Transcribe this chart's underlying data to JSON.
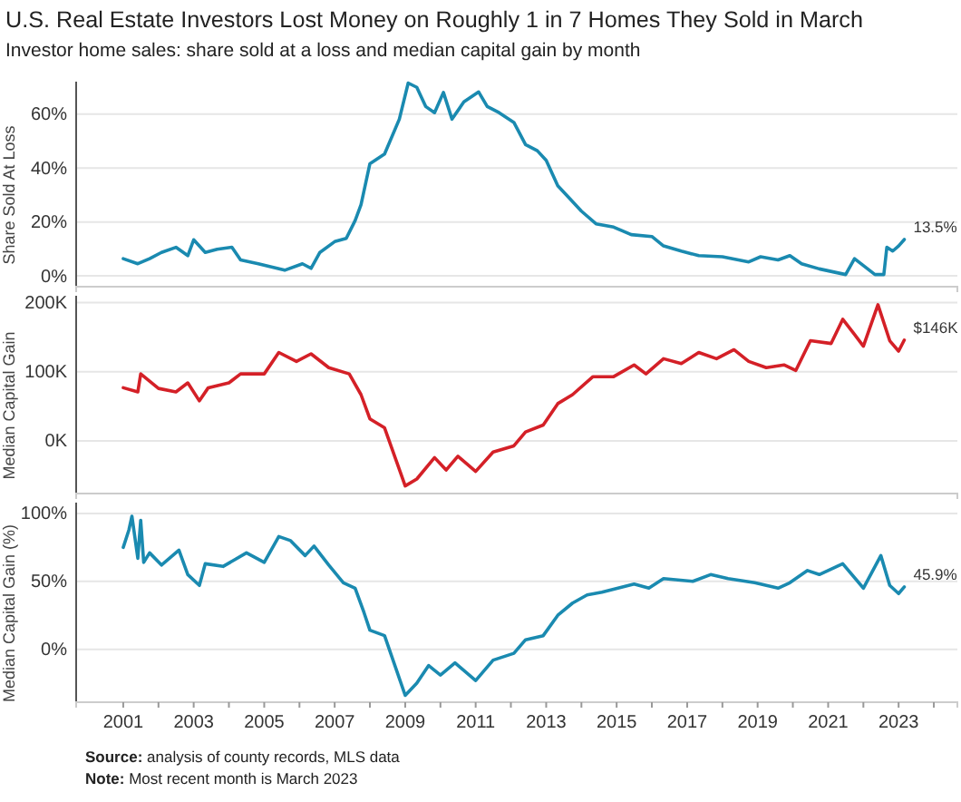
{
  "chart_data": [
    {
      "type": "line",
      "title": "U.S. Real Estate Investors Lost Money on Roughly 1 in 7 Homes They Sold in March",
      "subtitle": "Investor home sales: share sold at a loss and median capital gain by month",
      "ylabel": "Share Sold At Loss",
      "xlim": [
        "1999-09",
        "2024-09"
      ],
      "ylim": [
        -4,
        72
      ],
      "yticks": [
        {
          "value": 0,
          "label": "0%"
        },
        {
          "value": 20,
          "label": "20%"
        },
        {
          "value": 40,
          "label": "40%"
        },
        {
          "value": 60,
          "label": "60%"
        }
      ],
      "grid": "y",
      "tick_labels": "y",
      "line_style": "solid",
      "x": [
        "2001-01",
        "2001-06",
        "2001-10",
        "2002-02",
        "2002-07",
        "2002-11",
        "2003-01",
        "2003-05",
        "2003-09",
        "2004-02",
        "2004-05",
        "2004-11",
        "2005-08",
        "2006-02",
        "2006-05",
        "2006-08",
        "2007-01",
        "2007-05",
        "2007-08",
        "2007-10",
        "2008-01",
        "2008-06",
        "2008-11",
        "2009-02",
        "2009-05",
        "2009-08",
        "2009-11",
        "2010-02",
        "2010-05",
        "2010-09",
        "2011-02",
        "2011-05",
        "2011-09",
        "2012-02",
        "2012-06",
        "2012-10",
        "2013-01",
        "2013-05",
        "2013-09",
        "2014-01",
        "2014-06",
        "2014-12",
        "2015-06",
        "2016-01",
        "2016-05",
        "2016-11",
        "2017-05",
        "2018-01",
        "2018-10",
        "2019-02",
        "2019-08",
        "2019-12",
        "2020-04",
        "2020-10",
        "2021-07",
        "2021-10",
        "2022-05",
        "2022-08",
        "2022-09",
        "2022-11",
        "2023-01",
        "2023-03"
      ],
      "series": [
        {
          "color": "#1a8ab0",
          "values": [
            6.4,
            4.5,
            6.4,
            8.7,
            10.6,
            7.5,
            13.4,
            8.7,
            9.9,
            10.6,
            5.9,
            4.5,
            2.1,
            4.5,
            2.8,
            8.7,
            12.7,
            13.9,
            20.5,
            26.4,
            41.6,
            45.2,
            58.1,
            71.5,
            69.9,
            62.8,
            60.5,
            68,
            58.1,
            64.5,
            68.2,
            62.8,
            60.5,
            56.9,
            48.7,
            46.4,
            42.8,
            33.4,
            28.7,
            24,
            19.3,
            18.1,
            15.3,
            14.6,
            11.1,
            9.2,
            7.5,
            7.1,
            5.2,
            7.1,
            5.9,
            7.5,
            4.5,
            2.6,
            0.5,
            6.4,
            0.5,
            0.5,
            10.6,
            9.2,
            11.1,
            13.5
          ]
        }
      ],
      "annotations": [
        {
          "text": "13.5%",
          "x": "2023-03",
          "y": 13.5
        }
      ]
    },
    {
      "type": "line",
      "ylabel": "Median Capital Gain",
      "xlim": [
        "1999-09",
        "2024-09"
      ],
      "ylim": [
        -76,
        210
      ],
      "yticks": [
        {
          "value": 0,
          "label": "0K"
        },
        {
          "value": 100,
          "label": "100K"
        },
        {
          "value": 200,
          "label": "200K"
        }
      ],
      "grid": "y",
      "tick_labels": "y",
      "line_style": "solid",
      "x": [
        "2001-01",
        "2001-06",
        "2001-07",
        "2002-01",
        "2002-07",
        "2002-11",
        "2003-03",
        "2003-06",
        "2004-01",
        "2004-05",
        "2005-01",
        "2005-06",
        "2005-12",
        "2006-05",
        "2006-11",
        "2007-06",
        "2007-10",
        "2008-01",
        "2008-06",
        "2009-01",
        "2009-05",
        "2009-11",
        "2010-03",
        "2010-07",
        "2011-01",
        "2011-07",
        "2012-02",
        "2012-06",
        "2012-12",
        "2013-05",
        "2013-10",
        "2014-05",
        "2014-12",
        "2015-07",
        "2015-11",
        "2016-05",
        "2016-11",
        "2017-05",
        "2017-11",
        "2018-05",
        "2018-10",
        "2019-04",
        "2019-10",
        "2020-02",
        "2020-07",
        "2021-02",
        "2021-06",
        "2021-10",
        "2022-01",
        "2022-06",
        "2022-10",
        "2023-01",
        "2023-03"
      ],
      "series": [
        {
          "color": "#d42027",
          "values": [
            77,
            71,
            97,
            76,
            71,
            84,
            58,
            77,
            84,
            97,
            97,
            128,
            115,
            126,
            106,
            97,
            67,
            32,
            19,
            -65,
            -55,
            -24,
            -42,
            -22,
            -44,
            -16,
            -7,
            13,
            23,
            54,
            67,
            93,
            93,
            110,
            97,
            119,
            112,
            128,
            119,
            132,
            115,
            106,
            110,
            102,
            145,
            141,
            176,
            154,
            137,
            197,
            145,
            130,
            146
          ]
        }
      ],
      "annotations": [
        {
          "text": "$146K",
          "x": "2023-03",
          "y": 146
        }
      ]
    },
    {
      "type": "line",
      "ylabel": "Median Capital Gain (%)",
      "xlim": [
        "1999-09",
        "2024-09"
      ],
      "ylim": [
        -39,
        108
      ],
      "yticks": [
        {
          "value": 0,
          "label": "0%"
        },
        {
          "value": 50,
          "label": "50%"
        },
        {
          "value": 100,
          "label": "100%"
        }
      ],
      "grid": "y",
      "line_style": "solid",
      "xticks": [
        {
          "value": "2001",
          "label": "2001"
        },
        {
          "value": "2002",
          "label": null
        },
        {
          "value": "2003",
          "label": "2003"
        },
        {
          "value": "2004",
          "label": null
        },
        {
          "value": "2005",
          "label": "2005"
        },
        {
          "value": "2006",
          "label": null
        },
        {
          "value": "2007",
          "label": "2007"
        },
        {
          "value": "2008",
          "label": null
        },
        {
          "value": "2009",
          "label": "2009"
        },
        {
          "value": "2010",
          "label": null
        },
        {
          "value": "2011",
          "label": "2011"
        },
        {
          "value": "2012",
          "label": null
        },
        {
          "value": "2013",
          "label": "2013"
        },
        {
          "value": "2014",
          "label": null
        },
        {
          "value": "2015",
          "label": "2015"
        },
        {
          "value": "2016",
          "label": null
        },
        {
          "value": "2017",
          "label": "2017"
        },
        {
          "value": "2018",
          "label": null
        },
        {
          "value": "2019",
          "label": "2019"
        },
        {
          "value": "2020",
          "label": null
        },
        {
          "value": "2021",
          "label": "2021"
        },
        {
          "value": "2022",
          "label": null
        },
        {
          "value": "2023",
          "label": "2023"
        },
        {
          "value": "2024",
          "label": null
        }
      ],
      "x": [
        "2001-01",
        "2001-03",
        "2001-04",
        "2001-06",
        "2001-07",
        "2001-08",
        "2001-10",
        "2002-02",
        "2002-08",
        "2002-11",
        "2003-03",
        "2003-05",
        "2003-11",
        "2004-07",
        "2005-01",
        "2005-06",
        "2005-10",
        "2006-03",
        "2006-06",
        "2006-11",
        "2007-04",
        "2007-08",
        "2007-11",
        "2008-01",
        "2008-06",
        "2009-01",
        "2009-05",
        "2009-09",
        "2010-01",
        "2010-06",
        "2011-01",
        "2011-07",
        "2012-02",
        "2012-06",
        "2012-12",
        "2013-05",
        "2013-10",
        "2014-03",
        "2014-08",
        "2015-07",
        "2015-12",
        "2016-05",
        "2017-03",
        "2017-09",
        "2018-03",
        "2018-12",
        "2019-08",
        "2019-12",
        "2020-06",
        "2020-10",
        "2021-06",
        "2022-01",
        "2022-07",
        "2022-10",
        "2023-01",
        "2023-03"
      ],
      "series": [
        {
          "color": "#1a8ab0",
          "values": [
            75,
            88,
            98,
            67,
            95,
            64,
            71,
            62,
            73,
            55,
            47,
            63,
            61,
            71,
            64,
            83,
            80,
            69,
            76,
            62,
            49,
            45,
            27,
            14,
            10,
            -34,
            -25,
            -12,
            -19,
            -10,
            -23,
            -8,
            -3,
            7,
            10,
            25,
            34,
            40,
            42,
            48,
            45,
            52,
            50,
            55,
            52,
            49,
            45,
            49,
            58,
            55,
            63,
            45,
            69,
            47,
            41,
            45.9
          ]
        }
      ],
      "annotations": [
        {
          "text": "45.9%",
          "x": "2023-03",
          "y": 45.9
        },
        "Source: analysis of county records, MLS data",
        "Note: Most recent month is March 2023"
      ]
    }
  ]
}
